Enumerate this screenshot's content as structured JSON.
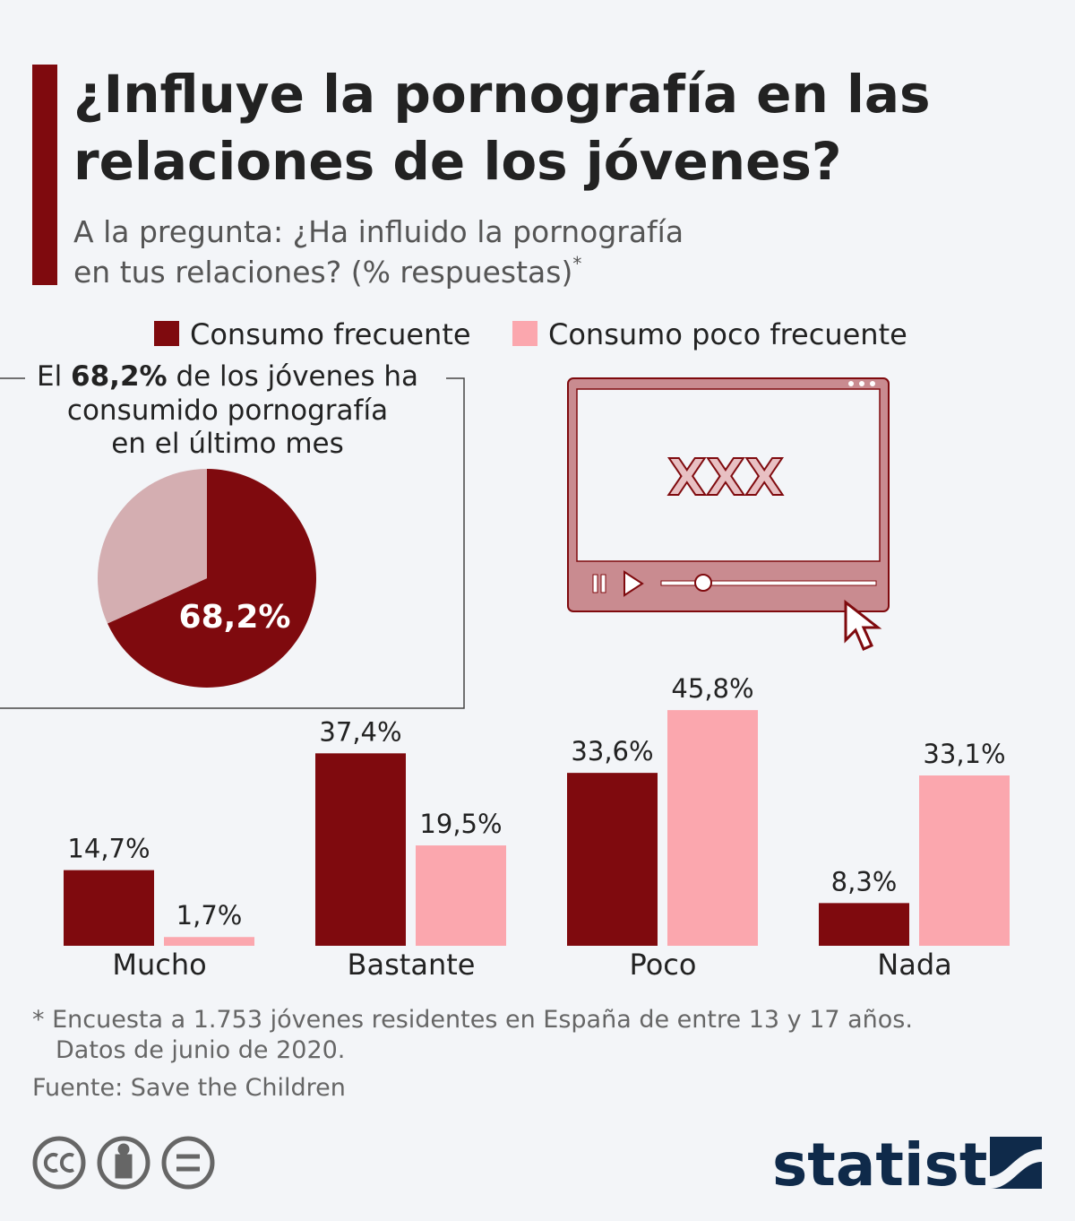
{
  "title": [
    "¿Influye la pornografía en las",
    "relaciones de los jóvenes?"
  ],
  "subtitle": [
    "A la pregunta: ¿Ha influido la pornografía",
    "en tus relaciones? (% respuestas)"
  ],
  "subtitle_mark": "*",
  "chart_data": [
    {
      "type": "bar",
      "categories": [
        "Mucho",
        "Bastante",
        "Poco",
        "Nada"
      ],
      "series": [
        {
          "name": "Consumo frecuente",
          "color": "#7f0a0e",
          "values": [
            14.7,
            37.4,
            33.6,
            8.3
          ],
          "value_labels": [
            "14,7%",
            "37,4%",
            "33,6%",
            "8,3%"
          ]
        },
        {
          "name": "Consumo poco frecuente",
          "color": "#fba7ae",
          "values": [
            1.7,
            19.5,
            45.8,
            33.1
          ],
          "value_labels": [
            "1,7%",
            "19,5%",
            "45,8%",
            "33,1%"
          ]
        }
      ]
    },
    {
      "type": "pie",
      "annotation": [
        "El ",
        "68,2%",
        " de los jóvenes ha",
        "consumido pornografía",
        "en el último mes"
      ],
      "values": [
        68.2,
        31.8
      ],
      "value_labels": [
        "68,2%",
        null
      ],
      "colors": [
        "#7f0a0e",
        "#d4aeb1"
      ]
    }
  ],
  "illustration": {
    "text": "XXX"
  },
  "footnote": [
    "* Encuesta a 1.753 jóvenes residentes en España de entre 13 y 17 años.",
    "Datos de junio de 2020."
  ],
  "source": "Fuente: Save the Children",
  "brand": "statista"
}
